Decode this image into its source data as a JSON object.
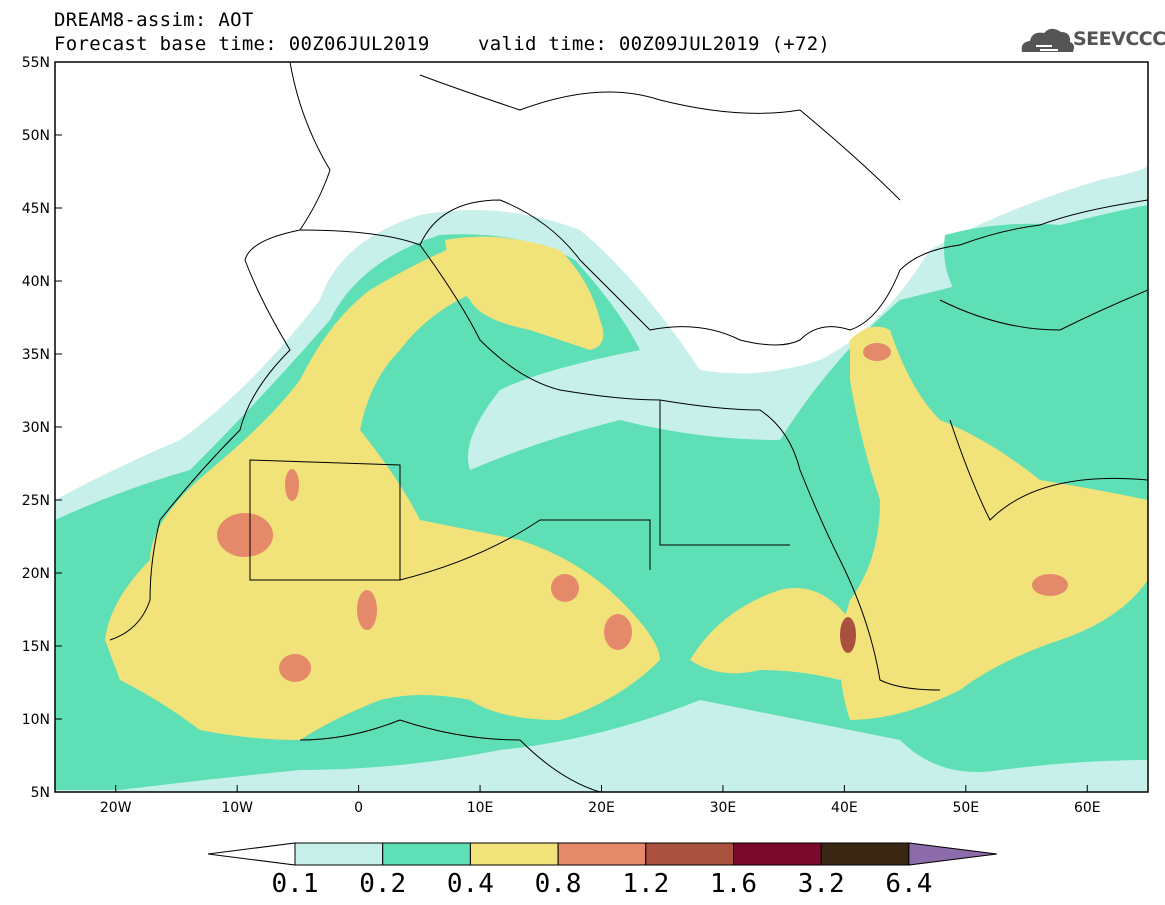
{
  "header": {
    "title": "DREAM8-assim: AOT",
    "base_time": "Forecast base time: 00Z06JUL2019",
    "valid_time": "valid time: 00Z09JUL2019 (+72)"
  },
  "logo": {
    "text": "SEEVCCC",
    "icon": "cloud-icon"
  },
  "map": {
    "variable": "AOT",
    "lat_range": [
      5,
      55
    ],
    "lon_range": [
      -25,
      65
    ],
    "lat_ticks": [
      "5N",
      "10N",
      "15N",
      "20N",
      "25N",
      "30N",
      "35N",
      "40N",
      "45N",
      "50N",
      "55N"
    ],
    "lon_ticks": [
      "20W",
      "10W",
      "0",
      "10E",
      "20E",
      "30E",
      "40E",
      "50E",
      "60E"
    ]
  },
  "colorbar": {
    "levels": [
      "0.1",
      "0.2",
      "0.4",
      "0.8",
      "1.2",
      "1.6",
      "3.2",
      "6.4"
    ],
    "colors": [
      "#c7f0ea",
      "#5fdfb5",
      "#f2e27a",
      "#e5896b",
      "#a9503f",
      "#7a0a2b",
      "#3b2613",
      "#8e6bab"
    ]
  }
}
